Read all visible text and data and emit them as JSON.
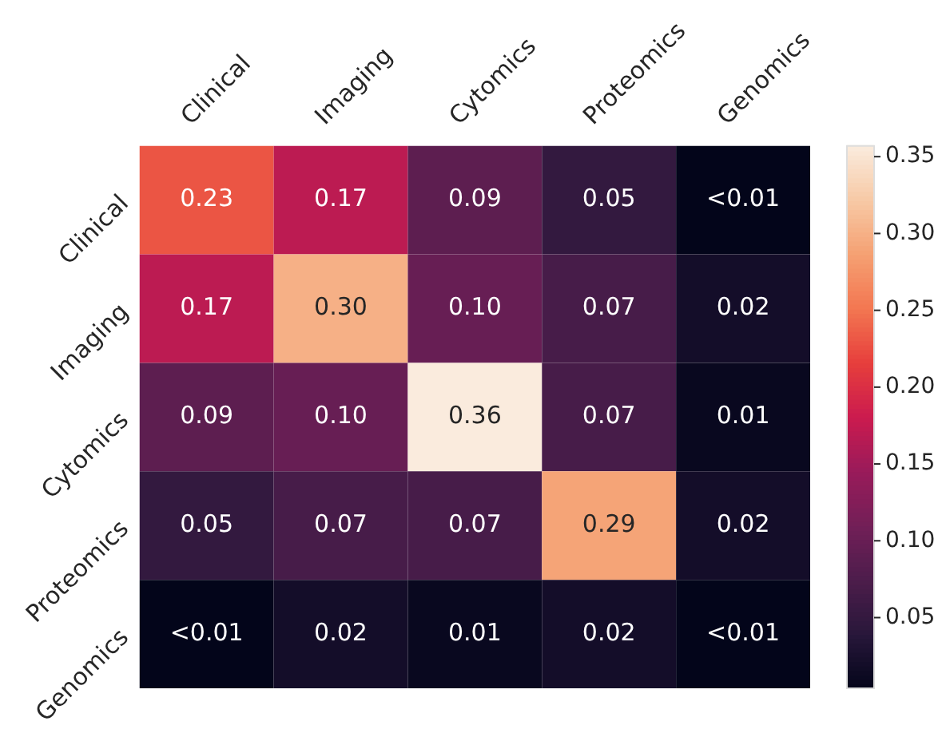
{
  "chart_data": {
    "type": "heatmap",
    "categories": [
      "Clinical",
      "Imaging",
      "Cytomics",
      "Proteomics",
      "Genomics"
    ],
    "y_categories": [
      "Clinical",
      "Imaging",
      "Cytomics",
      "Proteomics",
      "Genomics"
    ],
    "cells": [
      [
        0.23,
        0.17,
        0.09,
        0.05,
        0.004
      ],
      [
        0.17,
        0.3,
        0.1,
        0.07,
        0.02
      ],
      [
        0.09,
        0.1,
        0.36,
        0.07,
        0.01
      ],
      [
        0.05,
        0.07,
        0.07,
        0.29,
        0.02
      ],
      [
        0.004,
        0.02,
        0.01,
        0.02,
        0.004
      ]
    ],
    "cell_labels": [
      [
        "0.23",
        "0.17",
        "0.09",
        "0.05",
        "<0.01"
      ],
      [
        "0.17",
        "0.30",
        "0.10",
        "0.07",
        "0.02"
      ],
      [
        "0.09",
        "0.10",
        "0.36",
        "0.07",
        "0.01"
      ],
      [
        "0.05",
        "0.07",
        "0.07",
        "0.29",
        "0.02"
      ],
      [
        "<0.01",
        "0.02",
        "0.01",
        "0.02",
        "<0.01"
      ]
    ],
    "clim": [
      0.004,
      0.357
    ],
    "cticks": [
      {
        "value": 0.05,
        "label": "0.05"
      },
      {
        "value": 0.1,
        "label": "0.10"
      },
      {
        "value": 0.15,
        "label": "0.15"
      },
      {
        "value": 0.2,
        "label": "0.20"
      },
      {
        "value": 0.25,
        "label": "0.25"
      },
      {
        "value": 0.3,
        "label": "0.30"
      },
      {
        "value": 0.35,
        "label": "0.35"
      }
    ]
  }
}
